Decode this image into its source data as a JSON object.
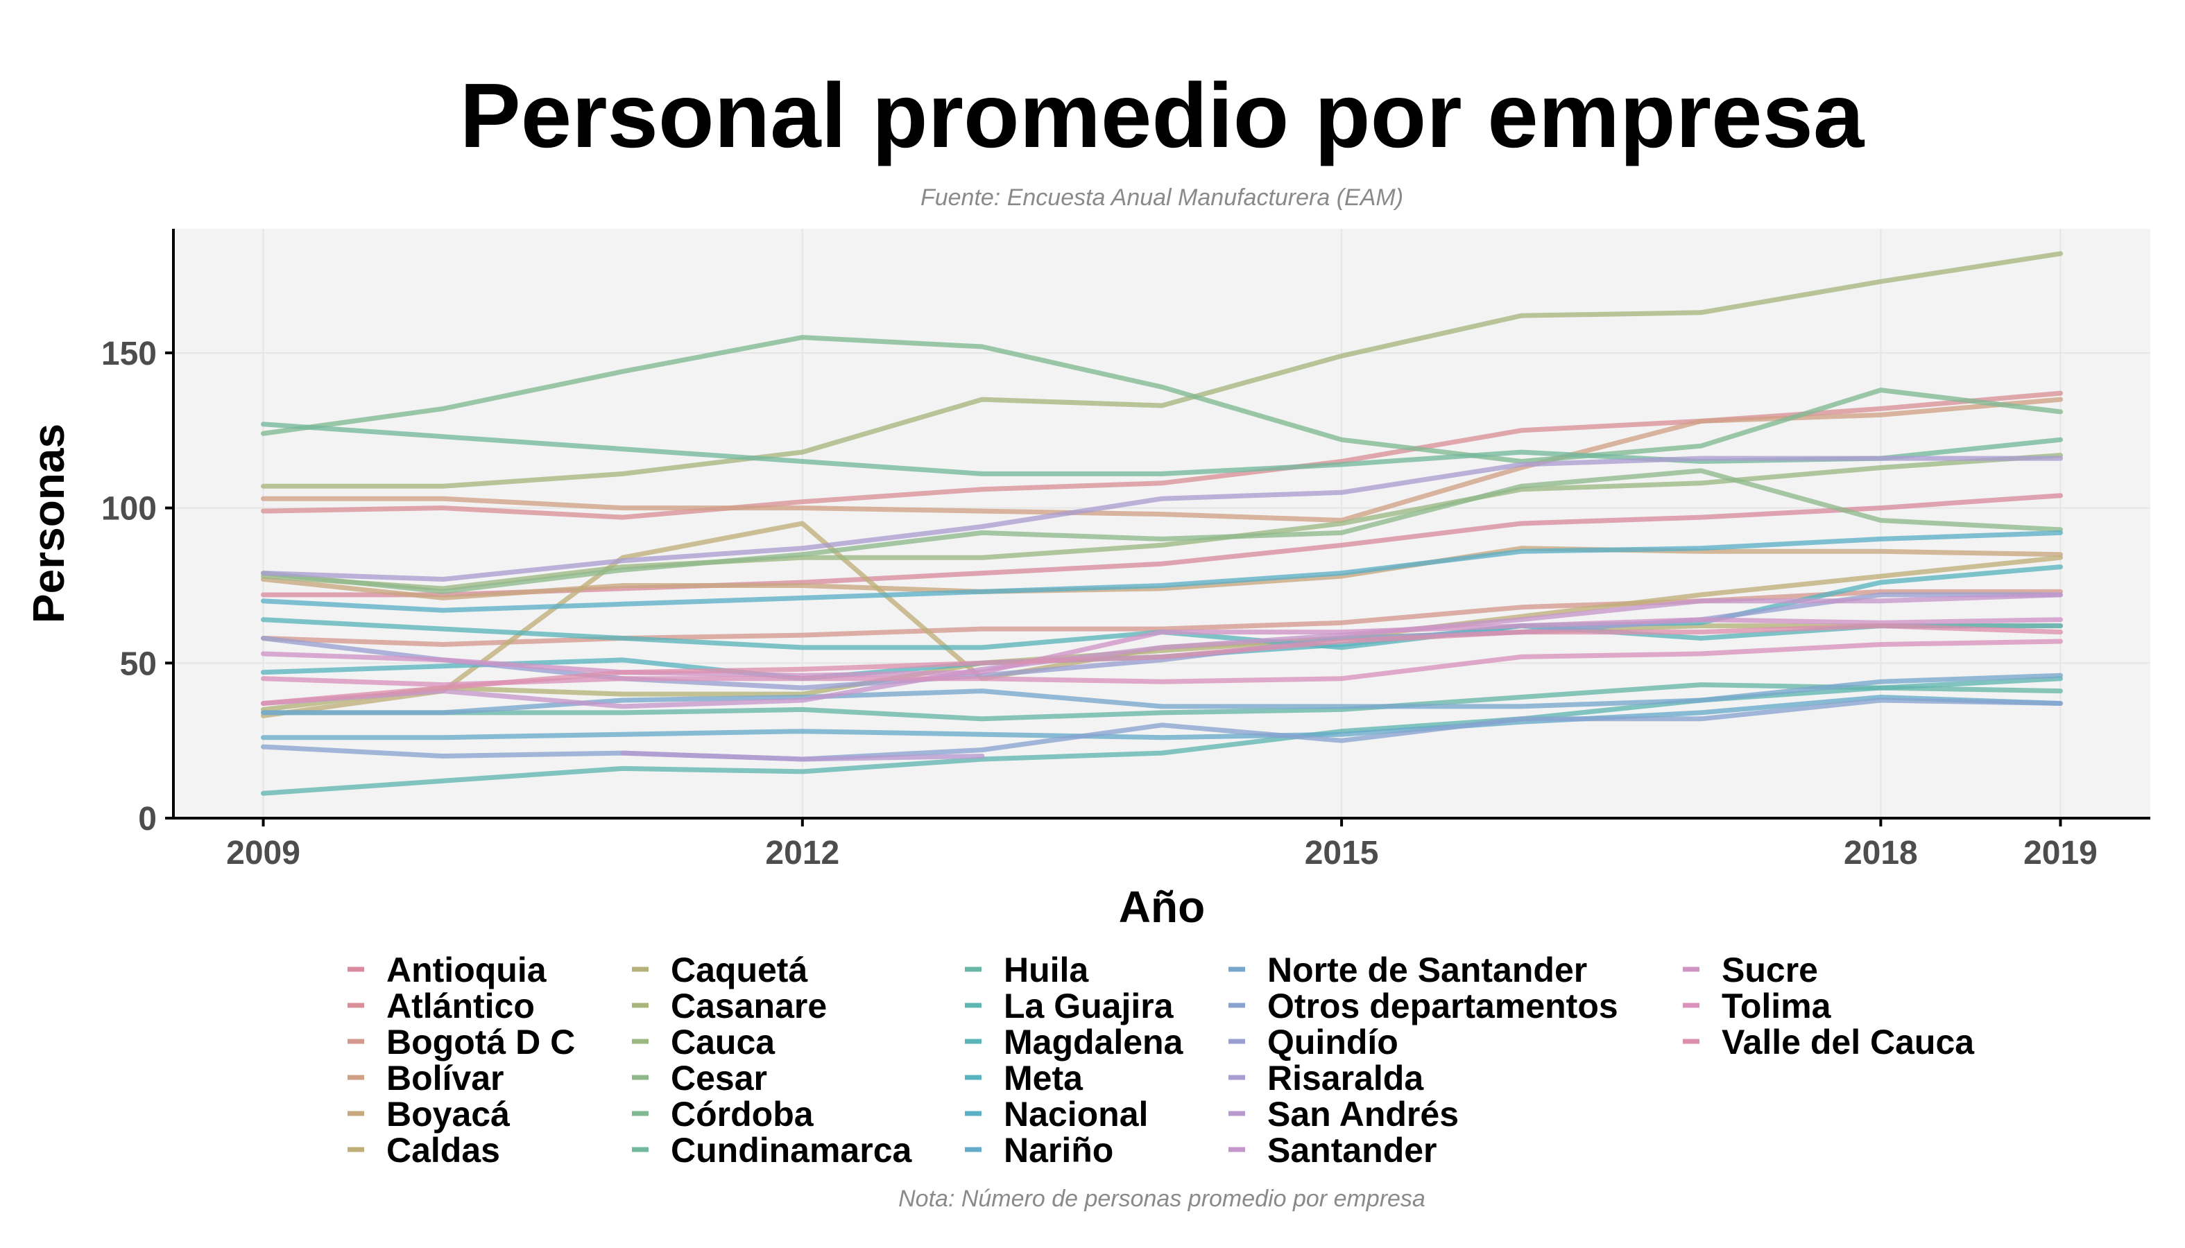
{
  "chart_data": {
    "type": "line",
    "title": "Personal promedio por empresa",
    "subtitle": "Fuente: Encuesta Anual Manufacturera (EAM)",
    "caption": "Nota: Número de personas promedio por empresa",
    "xlabel": "Año",
    "ylabel": "Personas",
    "xlim": [
      2008.5,
      2019.5
    ],
    "ylim": [
      0,
      190
    ],
    "x_ticks": [
      2009,
      2012,
      2015,
      2018,
      2019
    ],
    "y_ticks": [
      0,
      50,
      100,
      150
    ],
    "grid": true,
    "legend_position": "bottom",
    "x": [
      2009,
      2010,
      2011,
      2012,
      2013,
      2014,
      2015,
      2016,
      2017,
      2018,
      2019
    ],
    "series": [
      {
        "name": "Antioquia",
        "color": "#d98a9e",
        "values": [
          72,
          72,
          74,
          76,
          79,
          82,
          88,
          95,
          97,
          100,
          104
        ]
      },
      {
        "name": "Atlántico",
        "color": "#d88f97",
        "values": [
          99,
          100,
          97,
          102,
          106,
          108,
          115,
          125,
          128,
          132,
          137
        ]
      },
      {
        "name": "Bogotá D C",
        "color": "#d4998e",
        "values": [
          58,
          56,
          58,
          59,
          61,
          61,
          63,
          68,
          70,
          73,
          73
        ]
      },
      {
        "name": "Bolívar",
        "color": "#cfa085",
        "values": [
          103,
          103,
          100,
          100,
          99,
          98,
          96,
          113,
          128,
          130,
          135
        ]
      },
      {
        "name": "Boyacá",
        "color": "#c8a77e",
        "values": [
          77,
          71,
          75,
          75,
          73,
          74,
          78,
          87,
          86,
          86,
          85
        ]
      },
      {
        "name": "Caldas",
        "color": "#bfae78",
        "values": [
          33,
          41,
          84,
          95,
          45,
          55,
          58,
          65,
          72,
          78,
          84
        ]
      },
      {
        "name": "Caquetá",
        "color": "#b4b278",
        "values": [
          35,
          42,
          40,
          40,
          50,
          54,
          58,
          60,
          62,
          62,
          62
        ]
      },
      {
        "name": "Casanare",
        "color": "#a8b57d",
        "values": [
          107,
          107,
          111,
          118,
          135,
          133,
          149,
          162,
          163,
          173,
          182
        ]
      },
      {
        "name": "Cauca",
        "color": "#9bb782",
        "values": [
          78,
          74,
          81,
          84,
          84,
          88,
          95,
          106,
          108,
          113,
          117
        ]
      },
      {
        "name": "Cesar",
        "color": "#8eb88a",
        "values": [
          79,
          73,
          80,
          85,
          92,
          90,
          92,
          107,
          112,
          96,
          93
        ]
      },
      {
        "name": "Córdoba",
        "color": "#80b892",
        "values": [
          124,
          132,
          144,
          155,
          152,
          139,
          122,
          115,
          120,
          138,
          131
        ]
      },
      {
        "name": "Cundinamarca",
        "color": "#73b79c",
        "values": [
          127,
          123,
          119,
          115,
          111,
          111,
          114,
          118,
          115,
          116,
          122
        ]
      },
      {
        "name": "Huila",
        "color": "#68b6a6",
        "values": [
          34,
          34,
          34,
          35,
          32,
          34,
          35,
          39,
          43,
          42,
          41
        ]
      },
      {
        "name": "La Guajira",
        "color": "#5fb5b0",
        "values": [
          8,
          12,
          16,
          15,
          19,
          21,
          28,
          32,
          38,
          42,
          45
        ]
      },
      {
        "name": "Magdalena",
        "color": "#5ab4b8",
        "values": [
          64,
          61,
          58,
          55,
          55,
          60,
          55,
          62,
          58,
          62,
          62
        ]
      },
      {
        "name": "Meta",
        "color": "#58b3bf",
        "values": [
          47,
          49,
          51,
          45,
          50,
          52,
          56,
          62,
          63,
          76,
          81
        ]
      },
      {
        "name": "Nacional",
        "color": "#5bb0c6",
        "values": [
          70,
          67,
          69,
          71,
          73,
          75,
          79,
          86,
          87,
          90,
          92
        ]
      },
      {
        "name": "Nariño",
        "color": "#66aac9",
        "values": [
          26,
          26,
          27,
          28,
          27,
          26,
          27,
          31,
          34,
          39,
          37
        ]
      },
      {
        "name": "Norte de Santander",
        "color": "#77a6cd",
        "values": [
          34,
          34,
          38,
          39,
          41,
          36,
          36,
          36,
          38,
          44,
          46
        ]
      },
      {
        "name": "Otros departamentos",
        "color": "#88a3cf",
        "values": [
          23,
          20,
          21,
          19,
          22,
          30,
          25,
          32,
          32,
          38,
          37
        ]
      },
      {
        "name": "Quindío",
        "color": "#999fd0",
        "values": [
          58,
          51,
          45,
          42,
          46,
          51,
          58,
          60,
          64,
          72,
          72
        ]
      },
      {
        "name": "Risaralda",
        "color": "#a99cd0",
        "values": [
          79,
          77,
          83,
          87,
          94,
          103,
          105,
          114,
          116,
          116,
          116
        ]
      },
      {
        "name": "San Andrés",
        "color": "#b799ce",
        "values": [
          null,
          null,
          21,
          19,
          20,
          null,
          null,
          null,
          null,
          null,
          null
        ]
      },
      {
        "name": "Santander",
        "color": "#c596cb",
        "values": [
          37,
          41,
          36,
          38,
          48,
          55,
          59,
          64,
          70,
          70,
          72
        ]
      },
      {
        "name": "Sucre",
        "color": "#d093c5",
        "values": [
          53,
          51,
          47,
          46,
          47,
          60,
          60,
          62,
          64,
          63,
          64
        ]
      },
      {
        "name": "Tolima",
        "color": "#d892bb",
        "values": [
          45,
          43,
          45,
          45,
          45,
          44,
          45,
          52,
          53,
          56,
          57
        ]
      },
      {
        "name": "Valle del Cauca",
        "color": "#dc8fad",
        "values": [
          37,
          42,
          47,
          48,
          50,
          52,
          57,
          60,
          60,
          62,
          60
        ]
      }
    ]
  }
}
